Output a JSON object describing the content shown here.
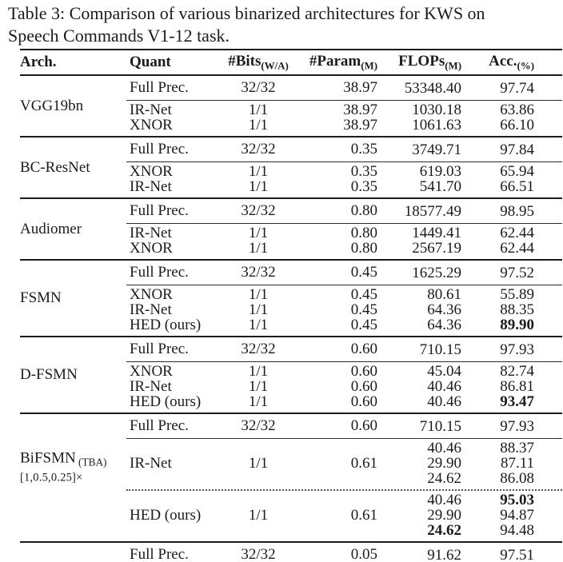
{
  "caption": {
    "line1": "Table 3: Comparison of various binarized architectures for KWS on",
    "line2": "Speech Commands V1-12 task."
  },
  "colors": {
    "text": "#1b1b1b",
    "rule": "#1c1c1c",
    "background": "#ffffff"
  },
  "columns": {
    "arch": {
      "label": "Arch.",
      "sub": ""
    },
    "quant": {
      "label": "Quant",
      "sub": ""
    },
    "bits": {
      "label": "#Bits",
      "sub": "(W/A)"
    },
    "param": {
      "label": "#Param",
      "sub": "(M)"
    },
    "flops": {
      "label": "FLOPs",
      "sub": "(M)"
    },
    "acc": {
      "label": "Acc.",
      "sub": "(%)"
    }
  },
  "sections": [
    {
      "arch": {
        "label": "VGG19bn",
        "sub": "",
        "line2": ""
      },
      "rows": [
        {
          "fp": true,
          "sep": "",
          "quant": "Full Prec.",
          "bits": "32/32",
          "param": "38.97",
          "flops": [
            {
              "v": "53348.40"
            }
          ],
          "acc": [
            {
              "v": "97.74"
            }
          ]
        },
        {
          "fp": false,
          "sep": "thin",
          "quant": "IR-Net",
          "bits": "1/1",
          "param": "38.97",
          "flops": [
            {
              "v": "1030.18"
            }
          ],
          "acc": [
            {
              "v": "63.86"
            }
          ]
        },
        {
          "fp": false,
          "sep": "",
          "quant": "XNOR",
          "bits": "1/1",
          "param": "38.97",
          "flops": [
            {
              "v": "1061.63"
            }
          ],
          "acc": [
            {
              "v": "66.10"
            }
          ]
        }
      ]
    },
    {
      "arch": {
        "label": "BC-ResNet",
        "sub": "",
        "line2": ""
      },
      "rows": [
        {
          "fp": true,
          "sep": "",
          "quant": "Full Prec.",
          "bits": "32/32",
          "param": "0.35",
          "flops": [
            {
              "v": "3749.71"
            }
          ],
          "acc": [
            {
              "v": "97.84"
            }
          ]
        },
        {
          "fp": false,
          "sep": "thin",
          "quant": "XNOR",
          "bits": "1/1",
          "param": "0.35",
          "flops": [
            {
              "v": "619.03"
            }
          ],
          "acc": [
            {
              "v": "65.94"
            }
          ]
        },
        {
          "fp": false,
          "sep": "",
          "quant": "IR-Net",
          "bits": "1/1",
          "param": "0.35",
          "flops": [
            {
              "v": "541.70"
            }
          ],
          "acc": [
            {
              "v": "66.51"
            }
          ]
        }
      ]
    },
    {
      "arch": {
        "label": "Audiomer",
        "sub": "",
        "line2": ""
      },
      "rows": [
        {
          "fp": true,
          "sep": "",
          "quant": "Full Prec.",
          "bits": "32/32",
          "param": "0.80",
          "flops": [
            {
              "v": "18577.49"
            }
          ],
          "acc": [
            {
              "v": "98.95"
            }
          ]
        },
        {
          "fp": false,
          "sep": "thin",
          "quant": "IR-Net",
          "bits": "1/1",
          "param": "0.80",
          "flops": [
            {
              "v": "1449.41"
            }
          ],
          "acc": [
            {
              "v": "62.44"
            }
          ]
        },
        {
          "fp": false,
          "sep": "",
          "quant": "XNOR",
          "bits": "1/1",
          "param": "0.80",
          "flops": [
            {
              "v": "2567.19"
            }
          ],
          "acc": [
            {
              "v": "62.44"
            }
          ]
        }
      ]
    },
    {
      "arch": {
        "label": "FSMN",
        "sub": "",
        "line2": ""
      },
      "rows": [
        {
          "fp": true,
          "sep": "",
          "quant": "Full Prec.",
          "bits": "32/32",
          "param": "0.45",
          "flops": [
            {
              "v": "1625.29"
            }
          ],
          "acc": [
            {
              "v": "97.52"
            }
          ]
        },
        {
          "fp": false,
          "sep": "thin",
          "quant": "XNOR",
          "bits": "1/1",
          "param": "0.45",
          "flops": [
            {
              "v": "80.61"
            }
          ],
          "acc": [
            {
              "v": "55.89"
            }
          ]
        },
        {
          "fp": false,
          "sep": "",
          "quant": "IR-Net",
          "bits": "1/1",
          "param": "0.45",
          "flops": [
            {
              "v": "64.36"
            }
          ],
          "acc": [
            {
              "v": "88.35"
            }
          ]
        },
        {
          "fp": false,
          "sep": "",
          "quant": "HED (ours)",
          "bits": "1/1",
          "param": "0.45",
          "flops": [
            {
              "v": "64.36"
            }
          ],
          "acc": [
            {
              "v": "89.90",
              "b": true
            }
          ]
        }
      ]
    },
    {
      "arch": {
        "label": "D-FSMN",
        "sub": "",
        "line2": ""
      },
      "rows": [
        {
          "fp": true,
          "sep": "",
          "quant": "Full Prec.",
          "bits": "32/32",
          "param": "0.60",
          "flops": [
            {
              "v": "710.15"
            }
          ],
          "acc": [
            {
              "v": "97.93"
            }
          ]
        },
        {
          "fp": false,
          "sep": "thin",
          "quant": "XNOR",
          "bits": "1/1",
          "param": "0.60",
          "flops": [
            {
              "v": "45.04"
            }
          ],
          "acc": [
            {
              "v": "82.74"
            }
          ]
        },
        {
          "fp": false,
          "sep": "",
          "quant": "IR-Net",
          "bits": "1/1",
          "param": "0.60",
          "flops": [
            {
              "v": "40.46"
            }
          ],
          "acc": [
            {
              "v": "86.81"
            }
          ]
        },
        {
          "fp": false,
          "sep": "",
          "quant": "HED (ours)",
          "bits": "1/1",
          "param": "0.60",
          "flops": [
            {
              "v": "40.46"
            }
          ],
          "acc": [
            {
              "v": "93.47",
              "b": true
            }
          ]
        }
      ]
    },
    {
      "arch": {
        "label": "BiFSMN",
        "sub": "(TBA)",
        "line2": "[1,0.5,0.25]×"
      },
      "rows": [
        {
          "fp": true,
          "sep": "",
          "quant": "Full Prec.",
          "bits": "32/32",
          "param": "0.60",
          "flops": [
            {
              "v": "710.15"
            }
          ],
          "acc": [
            {
              "v": "97.93"
            }
          ]
        },
        {
          "fp": false,
          "sep": "thin",
          "quant": "IR-Net",
          "bits": "1/1",
          "param": "0.61",
          "flops": [
            {
              "v": "40.46"
            },
            {
              "v": "29.90"
            },
            {
              "v": "24.62"
            }
          ],
          "acc": [
            {
              "v": "88.37"
            },
            {
              "v": "87.11"
            },
            {
              "v": "86.08"
            }
          ]
        },
        {
          "fp": false,
          "sep": "dotted",
          "quant": "HED (ours)",
          "bits": "1/1",
          "param": "0.61",
          "flops": [
            {
              "v": "40.46"
            },
            {
              "v": "29.90"
            },
            {
              "v": "24.62",
              "b": true
            }
          ],
          "acc": [
            {
              "v": "95.03",
              "b": true
            },
            {
              "v": "94.87"
            },
            {
              "v": "94.48"
            }
          ]
        }
      ]
    },
    {
      "arch": {
        "label": "",
        "sub": "",
        "line2": ""
      },
      "no_bottom": true,
      "bottom_sep": "thin",
      "rows": [
        {
          "fp": true,
          "sep": "",
          "quant": "Full Prec.",
          "bits": "32/32",
          "param": "0.05",
          "flops": [
            {
              "v": "91.62"
            }
          ],
          "acc": [
            {
              "v": "97.51"
            }
          ]
        }
      ]
    }
  ]
}
